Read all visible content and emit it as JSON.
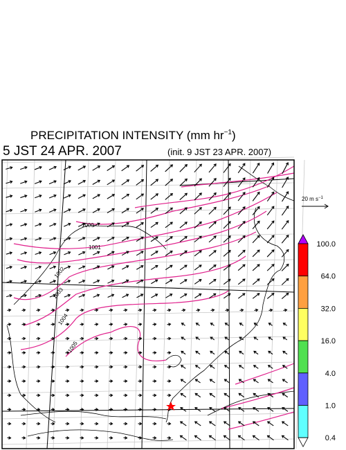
{
  "title": {
    "text": "PRECIPITATION INTENSITY (mm hr",
    "exponent": "−1",
    "close": ")"
  },
  "valid_time": "5 JST 24 APR. 2007",
  "init_time": "(init. 9 JST 23 APR. 2007)",
  "wind_scale": {
    "text": "20 m s",
    "exponent": "−1"
  },
  "colorbar": {
    "levels": [
      {
        "value": 100,
        "label": "100.0"
      },
      {
        "value": 64,
        "label": "64.0"
      },
      {
        "value": 32,
        "label": "32.0"
      },
      {
        "value": 16,
        "label": "16.0"
      },
      {
        "value": 4,
        "label": "4.0"
      },
      {
        "value": 1,
        "label": "1.0"
      },
      {
        "value": 0.4,
        "label": "0.4"
      }
    ],
    "colors": [
      "#b400ff",
      "#ff0000",
      "#ffa040",
      "#ffff60",
      "#50e050",
      "#6060ff",
      "#60ffff",
      "#ffffff"
    ]
  },
  "contour_labels": [
    1000,
    1001,
    1002,
    1003,
    1004,
    1005
  ]
}
